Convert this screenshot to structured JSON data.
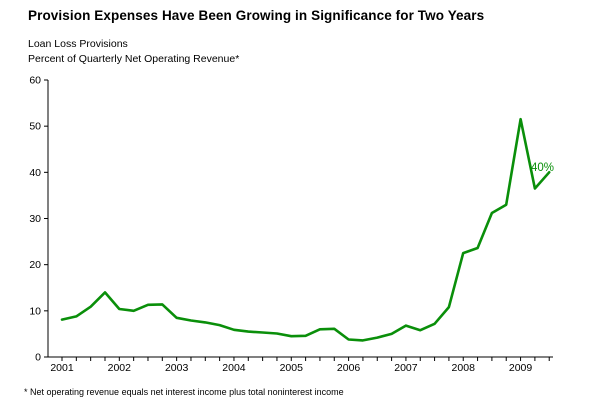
{
  "page": {
    "title": "Provision Expenses Have Been Growing in Significance for Two Years",
    "subtitle_line1": "Loan Loss Provisions",
    "subtitle_line2": "Percent of Quarterly Net Operating Revenue*",
    "footnote": "* Net operating revenue equals net interest income plus total noninterest income"
  },
  "colors": {
    "line": "#0a8f0a",
    "axis": "#000000",
    "text": "#000000",
    "background": "#ffffff"
  },
  "annotation": {
    "label": "40%",
    "value": 40,
    "quarter": "2009 Q3"
  },
  "chart_data": {
    "type": "line",
    "title": "Provision Expenses Have Been Growing in Significance for Two Years",
    "series_name": "Loan Loss Provisions",
    "ylabel": "Percent of Quarterly Net Operating Revenue*",
    "ylim": [
      0,
      60
    ],
    "y_ticks": [
      0,
      10,
      20,
      30,
      40,
      50,
      60
    ],
    "x_tick_years": [
      "2001",
      "2002",
      "2003",
      "2004",
      "2005",
      "2006",
      "2007",
      "2008",
      "2009"
    ],
    "grid": false,
    "legend_position": "none",
    "x": [
      "2001 Q1",
      "2001 Q2",
      "2001 Q3",
      "2001 Q4",
      "2002 Q1",
      "2002 Q2",
      "2002 Q3",
      "2002 Q4",
      "2003 Q1",
      "2003 Q2",
      "2003 Q3",
      "2003 Q4",
      "2004 Q1",
      "2004 Q2",
      "2004 Q3",
      "2004 Q4",
      "2005 Q1",
      "2005 Q2",
      "2005 Q3",
      "2005 Q4",
      "2006 Q1",
      "2006 Q2",
      "2006 Q3",
      "2006 Q4",
      "2007 Q1",
      "2007 Q2",
      "2007 Q3",
      "2007 Q4",
      "2008 Q1",
      "2008 Q2",
      "2008 Q3",
      "2008 Q4",
      "2009 Q1",
      "2009 Q2",
      "2009 Q3"
    ],
    "values": [
      8.1,
      8.8,
      10.9,
      14.0,
      10.4,
      10.0,
      11.3,
      11.4,
      8.5,
      7.9,
      7.5,
      6.9,
      5.9,
      5.5,
      5.3,
      5.1,
      4.5,
      4.6,
      6.0,
      6.1,
      3.8,
      3.6,
      4.2,
      5.0,
      6.8,
      5.8,
      7.2,
      10.8,
      22.5,
      23.6,
      31.2,
      33.0,
      51.5,
      36.5,
      40.0
    ]
  }
}
